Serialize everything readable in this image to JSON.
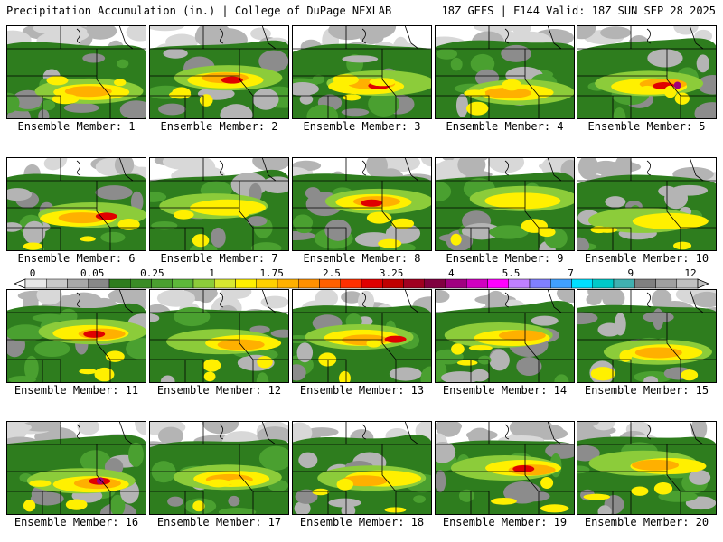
{
  "header": {
    "title_left": "Precipitation Accumulation (in.) | College of DuPage NEXLAB",
    "title_right": "18Z GEFS | F144 Valid: 18Z SUN SEP 28 2025"
  },
  "colorbar": {
    "tick_labels": [
      "0",
      "0.05",
      "0.25",
      "1",
      "1.75",
      "2.5",
      "3.25",
      "4",
      "5.5",
      "7",
      "9",
      "12"
    ],
    "colors": [
      "#e8e8e8",
      "#c8c8c8",
      "#a8a8a8",
      "#888888",
      "#2e7d1e",
      "#3a8c26",
      "#4aa030",
      "#5db83a",
      "#8ccc3a",
      "#d8e830",
      "#fff000",
      "#ffd000",
      "#ffb000",
      "#ff9000",
      "#ff6000",
      "#ff3000",
      "#e00000",
      "#c00000",
      "#a00020",
      "#800040",
      "#a00080",
      "#d000c0",
      "#ff00ff",
      "#c080ff",
      "#8080ff",
      "#40a0ff",
      "#00e0ff",
      "#00c8c8",
      "#40b0b0",
      "#808080",
      "#a0a0a0",
      "#c0c0c0"
    ]
  },
  "palette": {
    "background": "#ffffff",
    "trace": "#d8d8d8",
    "light_gray": "#b4b4b4",
    "dark_gray": "#8c8c8c",
    "green_dark": "#2e7d1e",
    "green_mid": "#4aa030",
    "green_light": "#8ccc3a",
    "yellow": "#fff000",
    "orange": "#ffb000",
    "red": "#e00000",
    "magenta": "#a0007a",
    "purple": "#c080ff",
    "border": "#000000"
  },
  "panels": [
    {
      "label": "Ensemble Member: 1"
    },
    {
      "label": "Ensemble Member: 2"
    },
    {
      "label": "Ensemble Member: 3"
    },
    {
      "label": "Ensemble Member: 4"
    },
    {
      "label": "Ensemble Member: 5"
    },
    {
      "label": "Ensemble Member: 6"
    },
    {
      "label": "Ensemble Member: 7"
    },
    {
      "label": "Ensemble Member: 8"
    },
    {
      "label": "Ensemble Member: 9"
    },
    {
      "label": "Ensemble Member: 10"
    },
    {
      "label": "Ensemble Member: 11"
    },
    {
      "label": "Ensemble Member: 12"
    },
    {
      "label": "Ensemble Member: 13"
    },
    {
      "label": "Ensemble Member: 14"
    },
    {
      "label": "Ensemble Member: 15"
    },
    {
      "label": "Ensemble Member: 16"
    },
    {
      "label": "Ensemble Member: 17"
    },
    {
      "label": "Ensemble Member: 18"
    },
    {
      "label": "Ensemble Member: 19"
    },
    {
      "label": "Ensemble Member: 20"
    }
  ]
}
